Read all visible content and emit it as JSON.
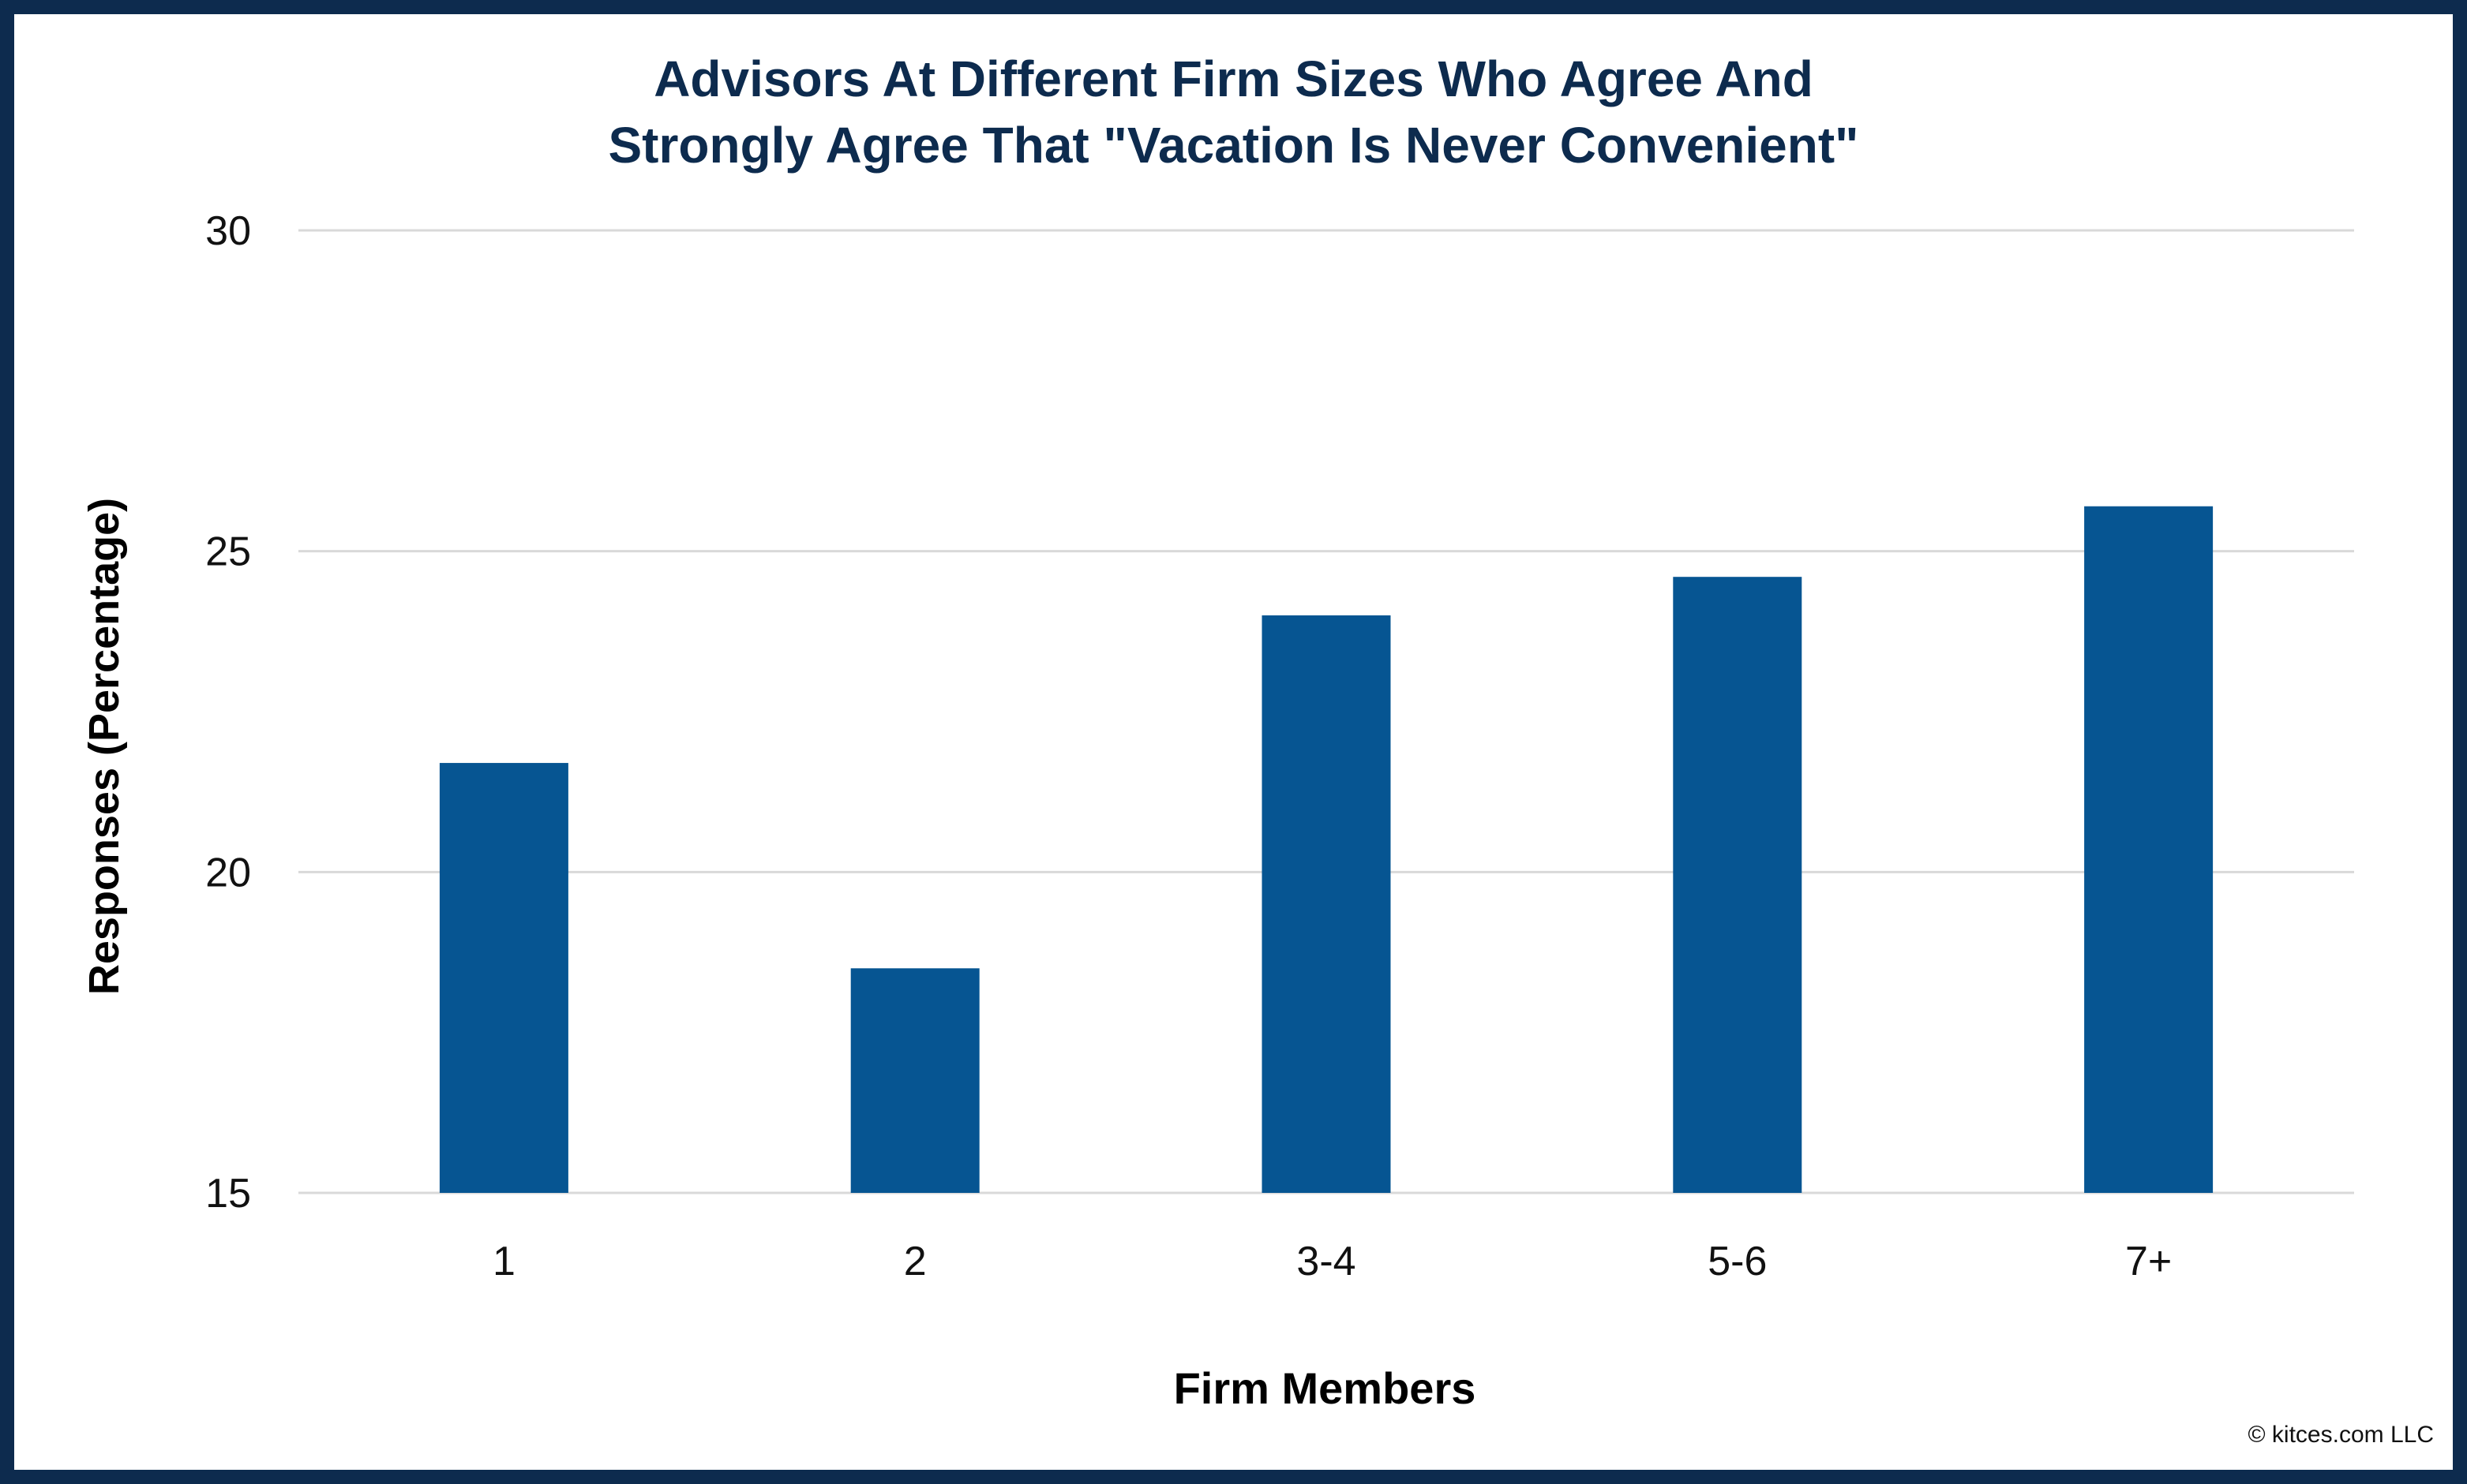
{
  "colors": {
    "frame": "#0d2b4e",
    "bar": "#065592",
    "title": "#0d2b4e",
    "grid": "#d9d9d9"
  },
  "chart_data": {
    "type": "bar",
    "title": "Advisors At Different Firm Sizes Who Agree And Strongly Agree That \"Vacation Is Never Convenient\"",
    "title_lines": [
      "Advisors At Different Firm Sizes Who Agree And",
      "Strongly Agree That \"Vacation Is Never Convenient\""
    ],
    "xlabel": "Firm Members",
    "ylabel": "Responses (Percentage)",
    "categories": [
      "1",
      "2",
      "3-4",
      "5-6",
      "7+"
    ],
    "values": [
      21.7,
      18.5,
      24.0,
      24.6,
      25.7
    ],
    "ylim": [
      15,
      30
    ],
    "yticks": [
      15,
      20,
      25,
      30
    ],
    "grid": true,
    "legend": "none"
  },
  "footer": {
    "copyright": "© kitces.com LLC"
  }
}
